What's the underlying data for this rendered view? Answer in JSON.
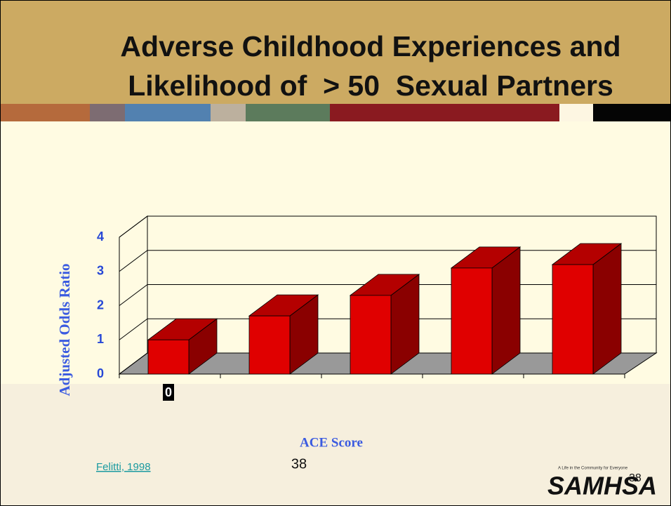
{
  "chart_data": {
    "type": "bar3d",
    "title": "Adverse Childhood Experiences and Likelihood of  > 50  Sexual Partners",
    "categories": [
      "0",
      null,
      null,
      null,
      null
    ],
    "values": [
      1.0,
      1.7,
      2.3,
      3.1,
      3.2
    ],
    "color": "#e00000",
    "ylim": [
      0,
      4
    ],
    "yticks": [
      0,
      1,
      2,
      3,
      4
    ],
    "grid": true,
    "ylabel": "Adjusted Odds Ratio",
    "xlabel": "ACE Score"
  },
  "footer": {
    "source": "Felitti, 1998",
    "page": "38",
    "page_overlay": "38"
  },
  "logo": {
    "name": "SAMHSA",
    "tagline": "A Life in the Community for Everyone"
  }
}
